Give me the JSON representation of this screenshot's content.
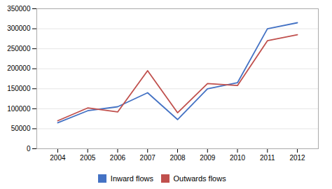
{
  "chart_data": {
    "type": "line",
    "x": [
      2004,
      2005,
      2006,
      2007,
      2008,
      2009,
      2010,
      2011,
      2012
    ],
    "xlim": [
      2003.3,
      2012.7
    ],
    "xticks": [
      2004,
      2005,
      2006,
      2007,
      2008,
      2009,
      2010,
      2011,
      2012
    ],
    "ylim": [
      0,
      350000
    ],
    "yticks": [
      0,
      50000,
      100000,
      150000,
      200000,
      250000,
      300000,
      350000
    ],
    "grid": true,
    "legend": "bottom",
    "series": [
      {
        "name": "Inward flows",
        "color": "#4472C4",
        "values": [
          65000,
          95000,
          105000,
          140000,
          73000,
          150000,
          165000,
          300000,
          315000
        ]
      },
      {
        "name": "Outwards flows",
        "color": "#C0504D",
        "values": [
          70000,
          102000,
          92000,
          195000,
          90000,
          163000,
          158000,
          270000,
          285000
        ]
      }
    ]
  }
}
